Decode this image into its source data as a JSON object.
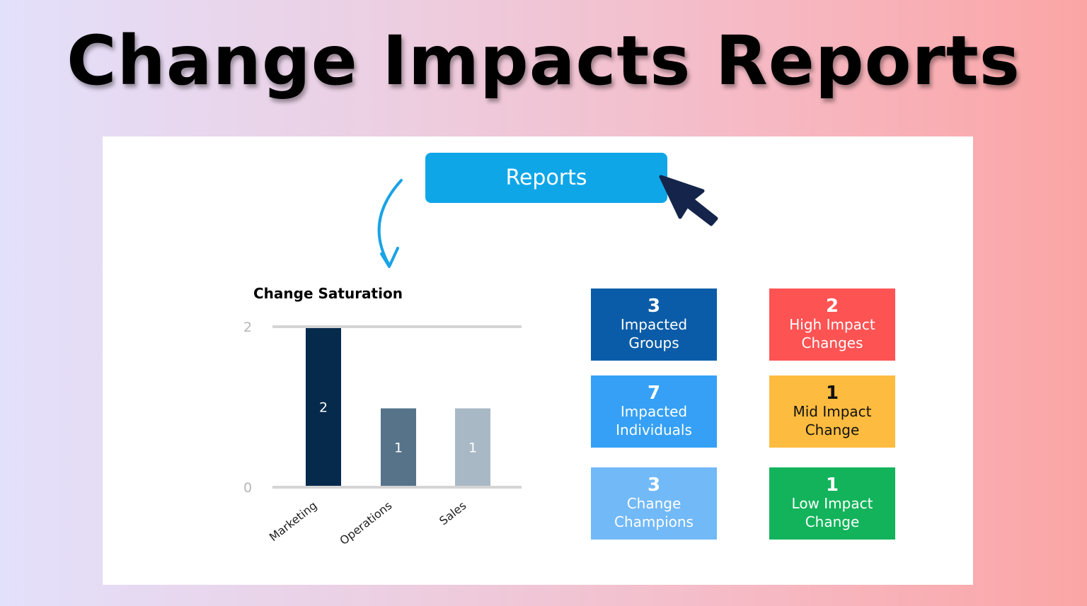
{
  "title": "Change Impacts Reports",
  "reports_button": "Reports",
  "colors": {
    "button": "#0fa6e8",
    "cursor": "#14244a",
    "arrow": "#1aa3e6"
  },
  "chart_data": {
    "type": "bar",
    "title": "Change Saturation",
    "categories": [
      "Marketing",
      "Operations",
      "Sales"
    ],
    "values": [
      2,
      1,
      1
    ],
    "data_labels": [
      "2",
      "1",
      "1"
    ],
    "colors": [
      "#062a4c",
      "#56738a",
      "#a9b8c5"
    ],
    "yticks": [
      "0",
      "2"
    ],
    "ylim": [
      0,
      2
    ],
    "grid": true
  },
  "tiles": [
    {
      "value": "3",
      "line1": "Impacted",
      "line2": "Groups",
      "color": "#0b5ca8",
      "text": "#ffffff"
    },
    {
      "value": "2",
      "line1": "High Impact",
      "line2": "Changes",
      "color": "#fe5353",
      "text": "#ffffff"
    },
    {
      "value": "7",
      "line1": "Impacted",
      "line2": "Individuals",
      "color": "#35a0f5",
      "text": "#ffffff"
    },
    {
      "value": "1",
      "line1": "Mid Impact",
      "line2": "Change",
      "color": "#fdbc3f",
      "text": "#111111"
    },
    {
      "value": "3",
      "line1": "Change",
      "line2": "Champions",
      "color": "#72b9f7",
      "text": "#ffffff"
    },
    {
      "value": "1",
      "line1": "Low Impact",
      "line2": "Change",
      "color": "#13b35b",
      "text": "#ffffff"
    }
  ]
}
